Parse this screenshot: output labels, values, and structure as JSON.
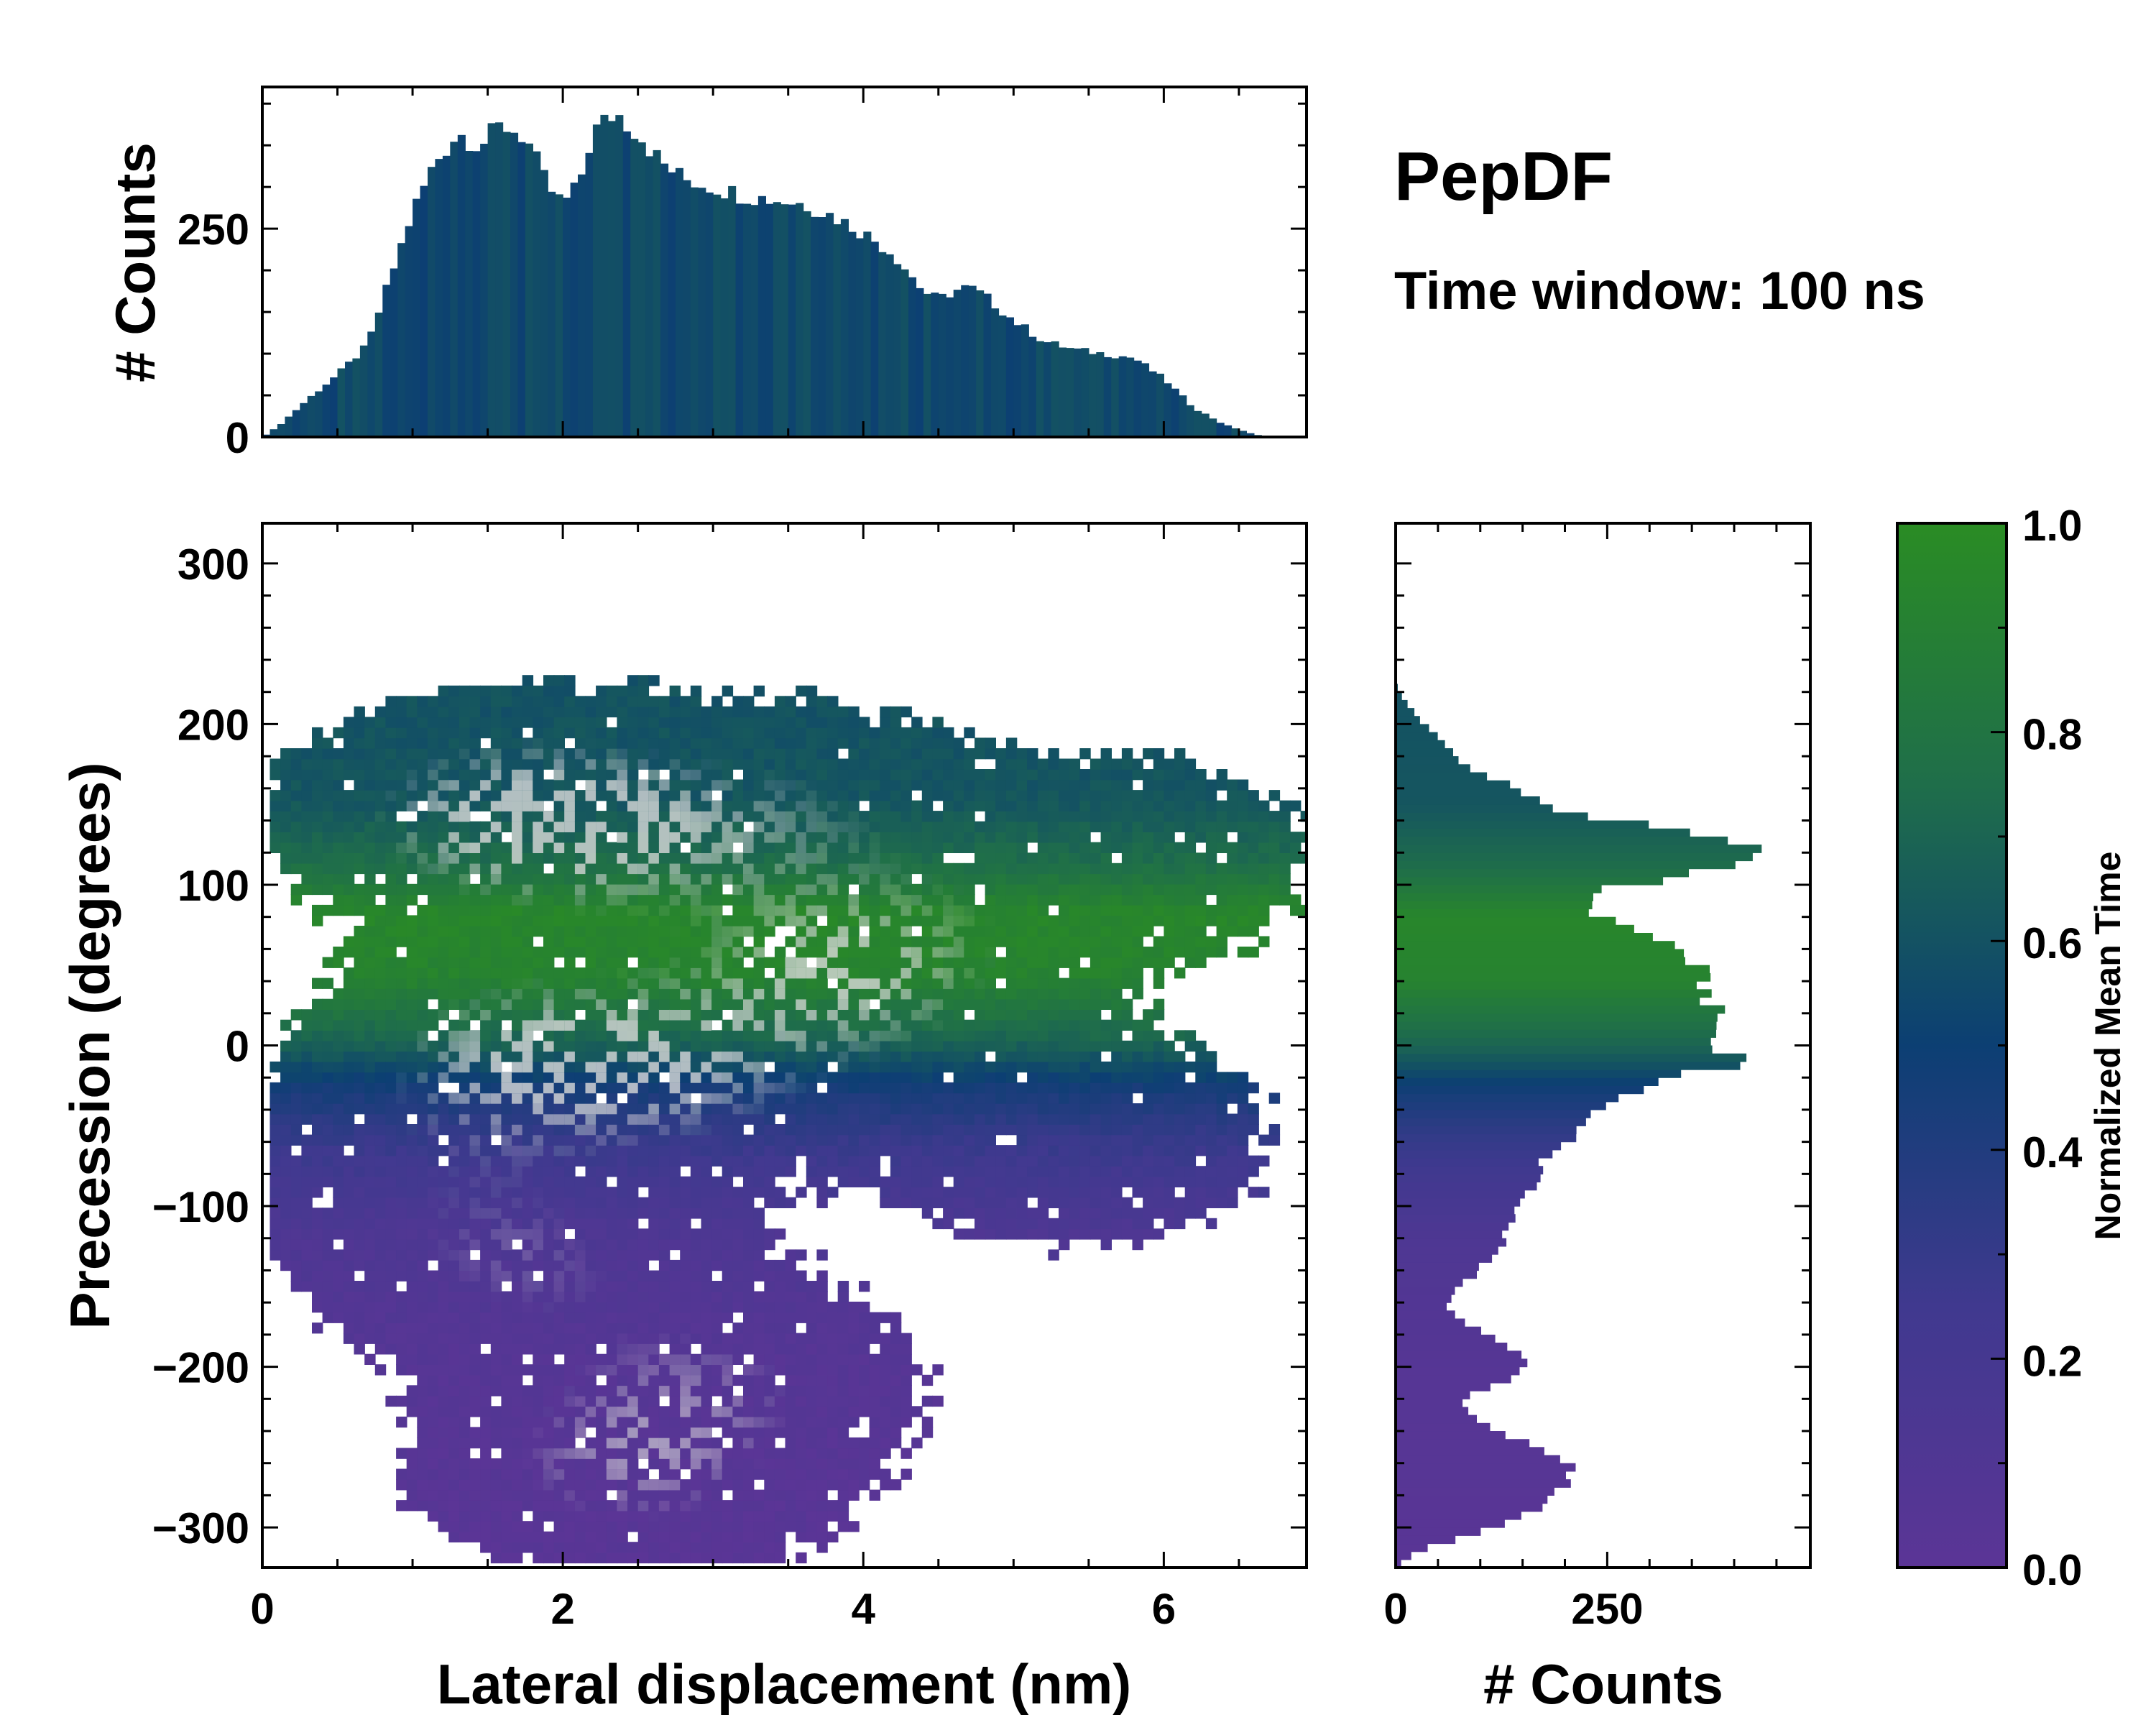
{
  "chart_data": [
    {
      "id": "top-histogram",
      "type": "bar",
      "title": "PepDF",
      "subtitle": "Time window: 100 ns",
      "xlabel": "",
      "ylabel": "# Counts",
      "xlim": [
        0,
        6.95
      ],
      "ylim": [
        0,
        420
      ],
      "yticks": [
        0,
        250
      ],
      "bin_width": 0.05,
      "profile_x": [
        0.0,
        0.1,
        0.3,
        0.5,
        0.7,
        0.85,
        1.0,
        1.15,
        1.3,
        1.45,
        1.6,
        1.75,
        1.9,
        2.0,
        2.1,
        2.2,
        2.35,
        2.5,
        2.65,
        2.8,
        3.0,
        3.2,
        3.4,
        3.6,
        3.8,
        4.0,
        4.2,
        4.4,
        4.5,
        4.6,
        4.7,
        4.8,
        5.0,
        5.2,
        5.4,
        5.6,
        5.8,
        6.0,
        6.2,
        6.4,
        6.6,
        6.7,
        6.95
      ],
      "profile_y": [
        0,
        12,
        45,
        75,
        110,
        190,
        270,
        330,
        365,
        350,
        375,
        360,
        300,
        280,
        300,
        365,
        390,
        365,
        330,
        310,
        300,
        290,
        285,
        280,
        265,
        245,
        220,
        175,
        165,
        175,
        180,
        170,
        140,
        115,
        105,
        100,
        95,
        70,
        35,
        15,
        3,
        0,
        0
      ]
    },
    {
      "id": "side-histogram",
      "type": "bar",
      "orientation": "horizontal",
      "xlabel": "# Counts",
      "ylabel": "",
      "xlim": [
        0,
        490
      ],
      "ylim": [
        -325,
        325
      ],
      "xticks": [
        0,
        250
      ],
      "bin_width": 5,
      "profile_y": [
        -325,
        -315,
        -300,
        -290,
        -275,
        -265,
        -250,
        -235,
        -220,
        -205,
        -195,
        -180,
        -165,
        -150,
        -130,
        -110,
        -90,
        -70,
        -55,
        -40,
        -25,
        -10,
        0,
        10,
        25,
        40,
        55,
        70,
        85,
        95,
        105,
        115,
        125,
        135,
        145,
        160,
        175,
        190,
        205,
        215,
        225,
        325
      ],
      "profile_x": [
        0,
        25,
        110,
        165,
        200,
        210,
        175,
        95,
        80,
        150,
        165,
        110,
        60,
        75,
        120,
        140,
        160,
        180,
        210,
        230,
        290,
        420,
        380,
        380,
        370,
        370,
        355,
        290,
        220,
        230,
        330,
        420,
        430,
        320,
        200,
        140,
        80,
        55,
        25,
        10,
        0,
        0
      ]
    },
    {
      "id": "heatmap",
      "type": "heatmap",
      "xlabel": "Lateral displacement (nm)",
      "ylabel": "Precession (degrees)",
      "xlim": [
        0,
        6.95
      ],
      "ylim": [
        -325,
        325
      ],
      "xticks": [
        0,
        2,
        4,
        6
      ],
      "yticks": [
        -300,
        -200,
        -100,
        0,
        100,
        200,
        300
      ],
      "color_by": "Normalized Mean Time",
      "clusters": [
        {
          "x": 1.5,
          "y": 140,
          "count": 240
        },
        {
          "x": 2.3,
          "y": 130,
          "count": 200
        },
        {
          "x": 3.6,
          "y": 140,
          "count": 140
        },
        {
          "x": 5.6,
          "y": 110,
          "count": 140
        },
        {
          "x": 1.7,
          "y": -10,
          "count": 260
        },
        {
          "x": 3.9,
          "y": 45,
          "count": 290
        },
        {
          "x": 2.8,
          "y": -20,
          "count": 200
        },
        {
          "x": 5.3,
          "y": -60,
          "count": 150
        },
        {
          "x": 1.7,
          "y": -140,
          "count": 170
        },
        {
          "x": 3.0,
          "y": -210,
          "count": 150
        },
        {
          "x": 2.4,
          "y": -265,
          "count": 220
        },
        {
          "x": 1.0,
          "y": -80,
          "count": 90
        }
      ]
    },
    {
      "id": "colorbar",
      "type": "colorbar",
      "label": "Normalized Mean Time",
      "range": [
        0.0,
        1.0
      ],
      "ticks": [
        "0.0",
        "0.2",
        "0.4",
        "0.6",
        "0.8",
        "1.0"
      ],
      "colormap": [
        {
          "v": 0.0,
          "color": "#5b3596"
        },
        {
          "v": 0.25,
          "color": "#40398f"
        },
        {
          "v": 0.5,
          "color": "#0c3f73"
        },
        {
          "v": 0.75,
          "color": "#1f6e4a"
        },
        {
          "v": 1.0,
          "color": "#2a8c24"
        }
      ]
    }
  ]
}
